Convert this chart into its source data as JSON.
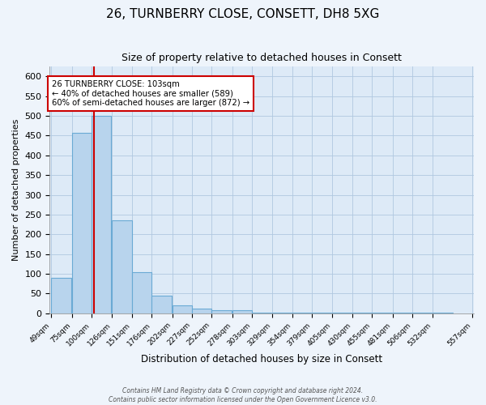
{
  "title": "26, TURNBERRY CLOSE, CONSETT, DH8 5XG",
  "subtitle": "Size of property relative to detached houses in Consett",
  "xlabel": "Distribution of detached houses by size in Consett",
  "ylabel": "Number of detached properties",
  "bar_color": "#b8d4ed",
  "bar_edge_color": "#6aaad4",
  "background_color": "#ddeaf7",
  "fig_background_color": "#eef4fb",
  "annotation_text": "26 TURNBERRY CLOSE: 103sqm\n← 40% of detached houses are smaller (589)\n60% of semi-detached houses are larger (872) →",
  "annotation_box_color": "#ffffff",
  "annotation_box_edge": "#cc0000",
  "red_line_x": 103,
  "red_line_color": "#cc0000",
  "bins_left": [
    49,
    75,
    100,
    126,
    151,
    176,
    202,
    227,
    252,
    278,
    303,
    329,
    354,
    379,
    405,
    430,
    455,
    481,
    506,
    532
  ],
  "bin_width": 25,
  "bin_heights": [
    90,
    457,
    500,
    235,
    105,
    45,
    20,
    12,
    8,
    8,
    1,
    1,
    1,
    1,
    1,
    1,
    1,
    1,
    1,
    2
  ],
  "tick_labels": [
    "49sqm",
    "75sqm",
    "100sqm",
    "126sqm",
    "151sqm",
    "176sqm",
    "202sqm",
    "227sqm",
    "252sqm",
    "278sqm",
    "303sqm",
    "329sqm",
    "354sqm",
    "379sqm",
    "405sqm",
    "430sqm",
    "455sqm",
    "481sqm",
    "506sqm",
    "532sqm",
    "557sqm"
  ],
  "ylim": [
    0,
    625
  ],
  "yticks": [
    0,
    50,
    100,
    150,
    200,
    250,
    300,
    350,
    400,
    450,
    500,
    550,
    600
  ],
  "footer_line1": "Contains HM Land Registry data © Crown copyright and database right 2024.",
  "footer_line2": "Contains public sector information licensed under the Open Government Licence v3.0."
}
